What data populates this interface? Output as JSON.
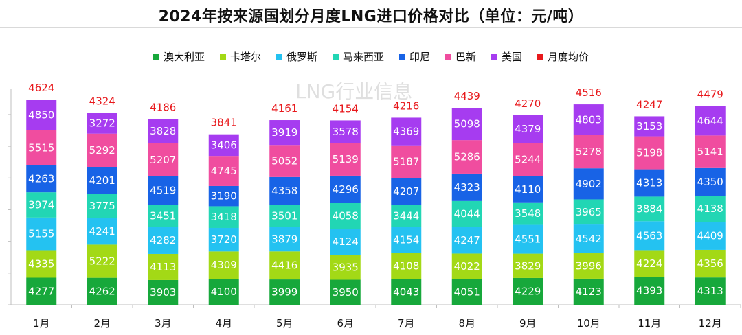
{
  "chart_data": {
    "type": "stacked-bar",
    "title": "2024年按来源国划分月度LNG进口价格对比（单位：元/吨）",
    "categories": [
      "1月",
      "2月",
      "3月",
      "4月",
      "5月",
      "6月",
      "7月",
      "8月",
      "9月",
      "10月",
      "11月",
      "12月"
    ],
    "series": [
      {
        "name": "澳大利亚",
        "color": "#17a83b",
        "values": [
          4277,
          4262,
          3903,
          4100,
          3999,
          3950,
          4043,
          4051,
          4229,
          4123,
          4393,
          4313
        ]
      },
      {
        "name": "卡塔尔",
        "color": "#a3d916",
        "values": [
          4335,
          5222,
          4113,
          4309,
          4416,
          3935,
          4108,
          4022,
          3829,
          3996,
          4224,
          4356
        ]
      },
      {
        "name": "俄罗斯",
        "color": "#24c2f1",
        "values": [
          5155,
          4241,
          4282,
          3720,
          3879,
          4124,
          4154,
          4247,
          4551,
          4542,
          4563,
          4409
        ]
      },
      {
        "name": "马来西亚",
        "color": "#22d6b4",
        "values": [
          3974,
          3775,
          3451,
          3418,
          3501,
          4058,
          3444,
          4044,
          3548,
          3965,
          3884,
          4138
        ]
      },
      {
        "name": "印尼",
        "color": "#1863e6",
        "values": [
          4263,
          4201,
          4519,
          3190,
          4358,
          4296,
          4207,
          4323,
          4110,
          4902,
          4313,
          4350
        ]
      },
      {
        "name": "巴新",
        "color": "#f04d9f",
        "values": [
          5515,
          5292,
          5207,
          4745,
          5052,
          5139,
          5187,
          5286,
          5244,
          5278,
          5198,
          5141
        ]
      },
      {
        "name": "美国",
        "color": "#a63cf0",
        "values": [
          4850,
          3272,
          3828,
          3406,
          3919,
          3578,
          4369,
          5098,
          4379,
          4803,
          3153,
          4644
        ]
      }
    ],
    "average": {
      "name": "月度均价",
      "color": "#e8191c",
      "values": [
        4624,
        4324,
        4186,
        3841,
        4161,
        4154,
        4216,
        4439,
        4270,
        4516,
        4247,
        4479
      ]
    },
    "ylim": [
      0,
      34000
    ],
    "grid": false,
    "legend": "top"
  },
  "watermark": "LNG行业信息"
}
